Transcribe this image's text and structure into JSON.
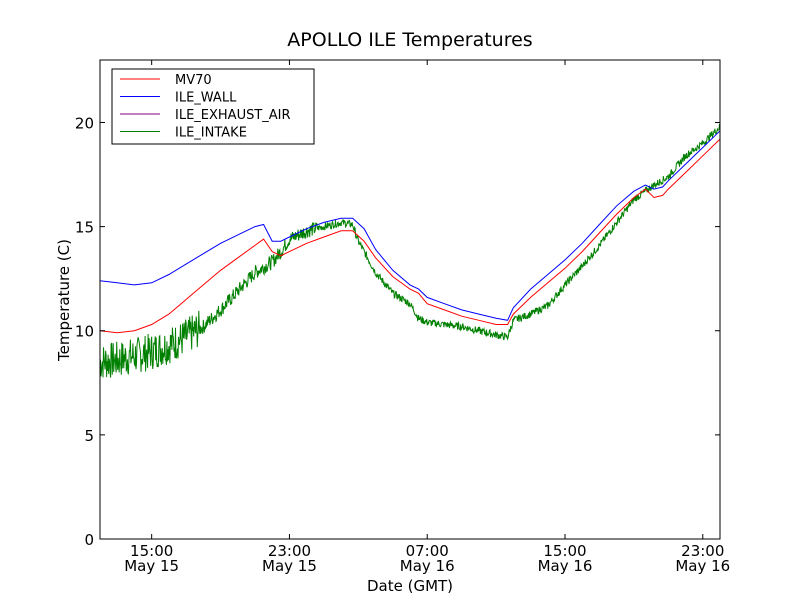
{
  "chart_data": {
    "type": "line",
    "title": "APOLLO ILE Temperatures",
    "xlabel": "Date (GMT)",
    "ylabel": "Temperature (C)",
    "xlim": [
      "2014-05-15 12:00",
      "2014-05-17 00:00"
    ],
    "ylim": [
      0,
      23
    ],
    "yticks": [
      0,
      5,
      10,
      15,
      20
    ],
    "xticks": [
      {
        "x": "2014-05-15 15:00",
        "time": "15:00",
        "date": "May 15"
      },
      {
        "x": "2014-05-15 23:00",
        "time": "23:00",
        "date": "May 15"
      },
      {
        "x": "2014-05-16 07:00",
        "time": "07:00",
        "date": "May 16"
      },
      {
        "x": "2014-05-16 15:00",
        "time": "15:00",
        "date": "May 16"
      },
      {
        "x": "2014-05-16 23:00",
        "time": "23:00",
        "date": "May 16"
      }
    ],
    "legend_position": "top-left",
    "series": [
      {
        "name": "MV70",
        "color": "#ff0000",
        "points": [
          [
            "2014-05-15 12:00",
            10.0
          ],
          [
            "2014-05-15 13:00",
            9.9
          ],
          [
            "2014-05-15 14:00",
            10.0
          ],
          [
            "2014-05-15 15:00",
            10.3
          ],
          [
            "2014-05-15 16:00",
            10.8
          ],
          [
            "2014-05-15 17:00",
            11.5
          ],
          [
            "2014-05-15 18:00",
            12.2
          ],
          [
            "2014-05-15 19:00",
            12.9
          ],
          [
            "2014-05-15 20:00",
            13.5
          ],
          [
            "2014-05-15 21:00",
            14.1
          ],
          [
            "2014-05-15 21:30",
            14.4
          ],
          [
            "2014-05-15 22:00",
            13.8
          ],
          [
            "2014-05-15 22:30",
            13.6
          ],
          [
            "2014-05-15 23:00",
            13.8
          ],
          [
            "2014-05-16 00:00",
            14.2
          ],
          [
            "2014-05-16 01:00",
            14.5
          ],
          [
            "2014-05-16 02:00",
            14.8
          ],
          [
            "2014-05-16 02:40",
            14.8
          ],
          [
            "2014-05-16 03:20",
            14.3
          ],
          [
            "2014-05-16 04:00",
            13.5
          ],
          [
            "2014-05-16 05:00",
            12.6
          ],
          [
            "2014-05-16 06:00",
            12.0
          ],
          [
            "2014-05-16 06:30",
            11.8
          ],
          [
            "2014-05-16 07:00",
            11.3
          ],
          [
            "2014-05-16 08:00",
            11.0
          ],
          [
            "2014-05-16 09:00",
            10.7
          ],
          [
            "2014-05-16 10:00",
            10.5
          ],
          [
            "2014-05-16 11:00",
            10.3
          ],
          [
            "2014-05-16 11:40",
            10.3
          ],
          [
            "2014-05-16 12:00",
            10.8
          ],
          [
            "2014-05-16 13:00",
            11.6
          ],
          [
            "2014-05-16 14:00",
            12.3
          ],
          [
            "2014-05-16 15:00",
            13.0
          ],
          [
            "2014-05-16 16:00",
            13.8
          ],
          [
            "2014-05-16 17:00",
            14.7
          ],
          [
            "2014-05-16 18:00",
            15.6
          ],
          [
            "2014-05-16 19:00",
            16.4
          ],
          [
            "2014-05-16 19:40",
            16.8
          ],
          [
            "2014-05-16 20:10",
            16.4
          ],
          [
            "2014-05-16 20:40",
            16.5
          ],
          [
            "2014-05-16 21:00",
            16.8
          ],
          [
            "2014-05-16 22:00",
            17.6
          ],
          [
            "2014-05-16 23:00",
            18.4
          ],
          [
            "2014-05-17 00:00",
            19.2
          ]
        ]
      },
      {
        "name": "ILE_WALL",
        "color": "#0000ff",
        "points": [
          [
            "2014-05-15 12:00",
            12.4
          ],
          [
            "2014-05-15 13:00",
            12.3
          ],
          [
            "2014-05-15 14:00",
            12.2
          ],
          [
            "2014-05-15 15:00",
            12.3
          ],
          [
            "2014-05-15 16:00",
            12.7
          ],
          [
            "2014-05-15 17:00",
            13.2
          ],
          [
            "2014-05-15 18:00",
            13.7
          ],
          [
            "2014-05-15 19:00",
            14.2
          ],
          [
            "2014-05-15 20:00",
            14.6
          ],
          [
            "2014-05-15 21:00",
            15.0
          ],
          [
            "2014-05-15 21:30",
            15.1
          ],
          [
            "2014-05-15 22:00",
            14.3
          ],
          [
            "2014-05-15 22:30",
            14.3
          ],
          [
            "2014-05-15 23:00",
            14.5
          ],
          [
            "2014-05-16 00:00",
            14.9
          ],
          [
            "2014-05-16 01:00",
            15.2
          ],
          [
            "2014-05-16 02:00",
            15.4
          ],
          [
            "2014-05-16 02:40",
            15.4
          ],
          [
            "2014-05-16 03:20",
            14.9
          ],
          [
            "2014-05-16 04:00",
            13.9
          ],
          [
            "2014-05-16 05:00",
            12.9
          ],
          [
            "2014-05-16 06:00",
            12.2
          ],
          [
            "2014-05-16 06:30",
            12.0
          ],
          [
            "2014-05-16 07:00",
            11.6
          ],
          [
            "2014-05-16 08:00",
            11.3
          ],
          [
            "2014-05-16 09:00",
            11.0
          ],
          [
            "2014-05-16 10:00",
            10.8
          ],
          [
            "2014-05-16 11:00",
            10.6
          ],
          [
            "2014-05-16 11:40",
            10.5
          ],
          [
            "2014-05-16 12:00",
            11.1
          ],
          [
            "2014-05-16 13:00",
            12.0
          ],
          [
            "2014-05-16 14:00",
            12.7
          ],
          [
            "2014-05-16 15:00",
            13.4
          ],
          [
            "2014-05-16 16:00",
            14.2
          ],
          [
            "2014-05-16 17:00",
            15.1
          ],
          [
            "2014-05-16 18:00",
            16.0
          ],
          [
            "2014-05-16 19:00",
            16.7
          ],
          [
            "2014-05-16 19:40",
            17.0
          ],
          [
            "2014-05-16 20:10",
            16.8
          ],
          [
            "2014-05-16 20:40",
            16.9
          ],
          [
            "2014-05-16 21:00",
            17.2
          ],
          [
            "2014-05-16 22:00",
            18.0
          ],
          [
            "2014-05-16 23:00",
            18.8
          ],
          [
            "2014-05-17 00:00",
            19.6
          ]
        ]
      },
      {
        "name": "ILE_EXHAUST_AIR",
        "color": "#800080",
        "points": []
      },
      {
        "name": "ILE_INTAKE",
        "color": "#008000",
        "points": [
          [
            "2014-05-15 12:00",
            8.5
          ],
          [
            "2014-05-15 13:00",
            8.6
          ],
          [
            "2014-05-15 14:00",
            8.8
          ],
          [
            "2014-05-15 15:00",
            9.0
          ],
          [
            "2014-05-15 16:00",
            9.3
          ],
          [
            "2014-05-15 17:00",
            9.7
          ],
          [
            "2014-05-15 18:00",
            10.2
          ],
          [
            "2014-05-15 19:00",
            11.0
          ],
          [
            "2014-05-15 20:00",
            11.9
          ],
          [
            "2014-05-15 21:00",
            12.8
          ],
          [
            "2014-05-15 22:00",
            13.3
          ],
          [
            "2014-05-15 22:30",
            13.8
          ],
          [
            "2014-05-15 23:00",
            14.4
          ],
          [
            "2014-05-16 00:00",
            14.8
          ],
          [
            "2014-05-16 01:00",
            15.0
          ],
          [
            "2014-05-16 02:00",
            15.2
          ],
          [
            "2014-05-16 02:40",
            15.1
          ],
          [
            "2014-05-16 03:00",
            14.3
          ],
          [
            "2014-05-16 04:00",
            12.8
          ],
          [
            "2014-05-16 05:00",
            11.8
          ],
          [
            "2014-05-16 06:00",
            11.3
          ],
          [
            "2014-05-16 06:30",
            10.6
          ],
          [
            "2014-05-16 07:00",
            10.4
          ],
          [
            "2014-05-16 08:00",
            10.3
          ],
          [
            "2014-05-16 09:00",
            10.2
          ],
          [
            "2014-05-16 10:00",
            10.0
          ],
          [
            "2014-05-16 11:00",
            9.8
          ],
          [
            "2014-05-16 11:40",
            9.7
          ],
          [
            "2014-05-16 12:00",
            10.5
          ],
          [
            "2014-05-16 13:00",
            10.8
          ],
          [
            "2014-05-16 14:00",
            11.2
          ],
          [
            "2014-05-16 15:00",
            12.2
          ],
          [
            "2014-05-16 16:00",
            13.1
          ],
          [
            "2014-05-16 17:00",
            14.1
          ],
          [
            "2014-05-16 18:00",
            15.2
          ],
          [
            "2014-05-16 19:00",
            16.3
          ],
          [
            "2014-05-16 20:00",
            16.9
          ],
          [
            "2014-05-16 21:00",
            17.4
          ],
          [
            "2014-05-16 22:00",
            18.4
          ],
          [
            "2014-05-16 23:00",
            19.0
          ],
          [
            "2014-05-17 00:00",
            19.8
          ]
        ],
        "noisy": true
      }
    ]
  }
}
